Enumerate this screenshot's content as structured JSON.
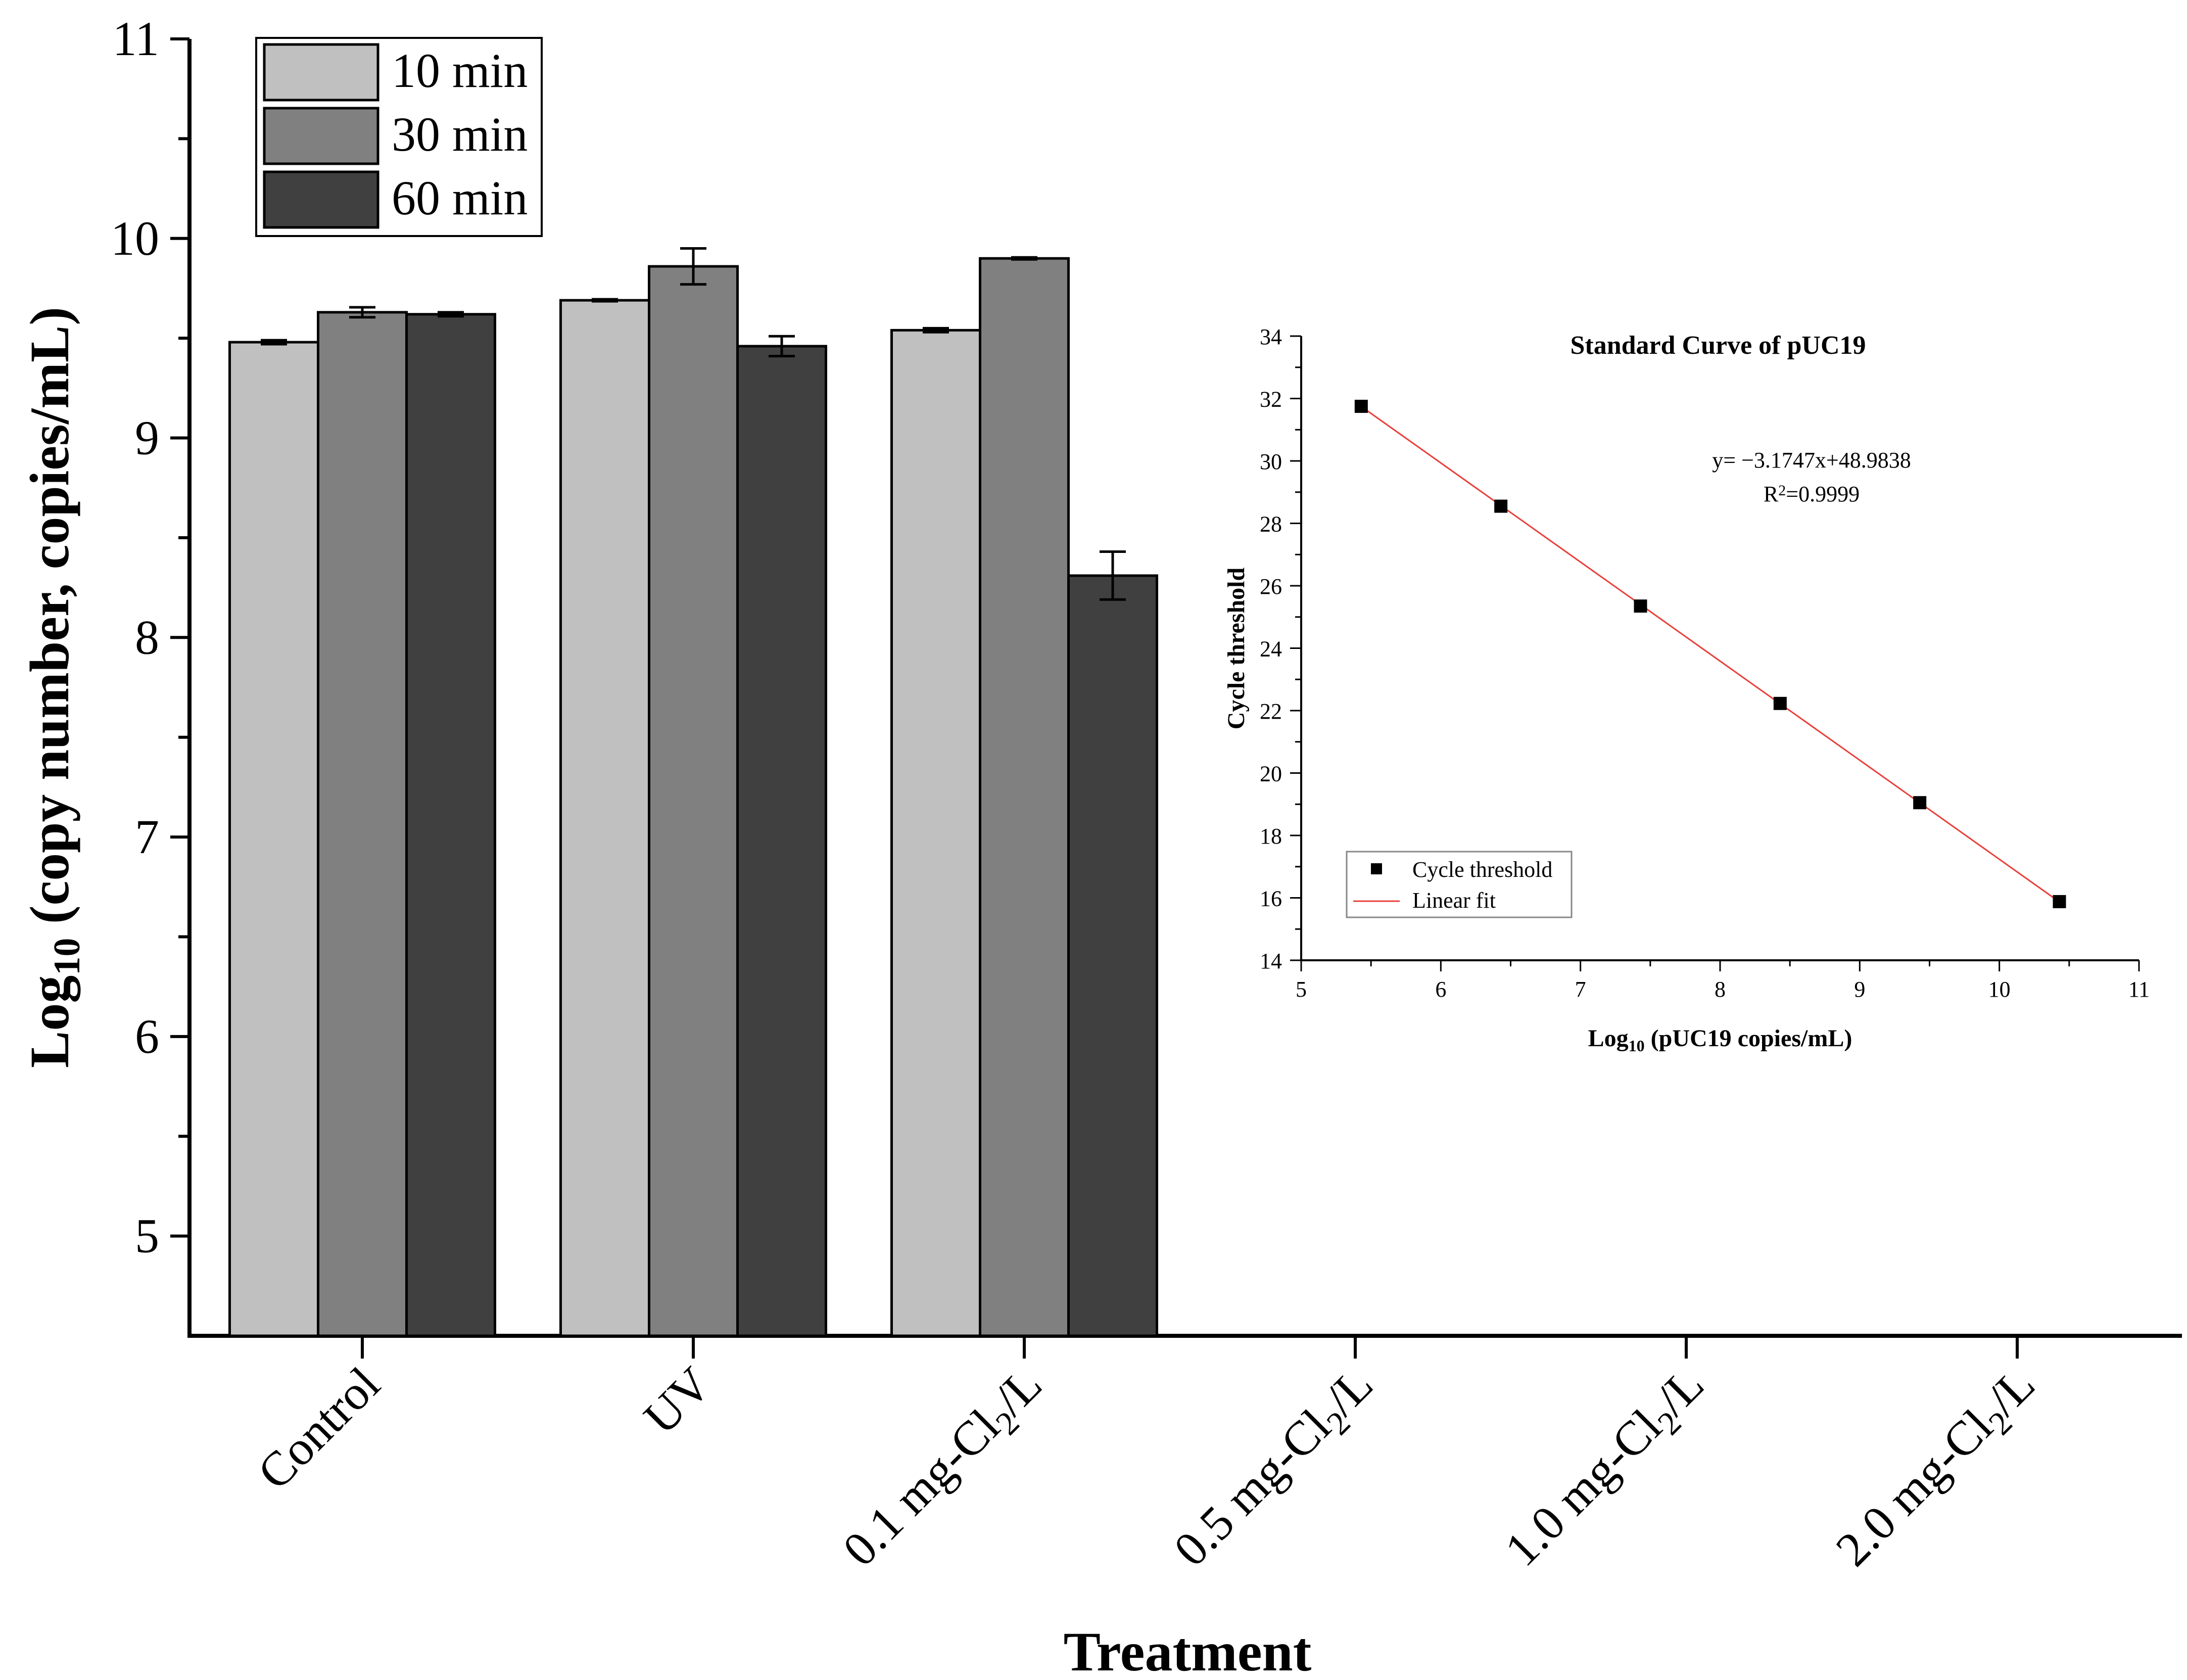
{
  "chart_data": [
    {
      "type": "bar",
      "xlabel": "Treatment",
      "ylabel_main": "Log",
      "ylabel_sub": "10",
      "ylabel_rest": " (copy number, copies/mL)",
      "ylim": [
        4.5,
        11
      ],
      "yticks": [
        5,
        6,
        7,
        8,
        9,
        10,
        11
      ],
      "categories": [
        {
          "main": "Control"
        },
        {
          "main": "UV"
        },
        {
          "main": "0.1 mg-Cl",
          "sub": "2",
          "tail": "/L"
        },
        {
          "main": "0.5 mg-Cl",
          "sub": "2",
          "tail": "/L"
        },
        {
          "main": "1.0 mg-Cl",
          "sub": "2",
          "tail": "/L"
        },
        {
          "main": "2.0 mg-Cl",
          "sub": "2",
          "tail": "/L"
        }
      ],
      "series": [
        {
          "name": "10 min",
          "color": "#c0c0c0",
          "values": [
            9.48,
            9.69,
            9.54,
            null,
            null,
            null
          ],
          "errors": [
            0.01,
            0.005,
            0.01,
            null,
            null,
            null
          ]
        },
        {
          "name": "30 min",
          "color": "#808080",
          "values": [
            9.63,
            9.86,
            9.9,
            null,
            null,
            null
          ],
          "errors": [
            0.025,
            0.09,
            0.005,
            null,
            null,
            null
          ]
        },
        {
          "name": "60 min",
          "color": "#404040",
          "values": [
            9.62,
            9.46,
            8.31,
            null,
            null,
            null
          ],
          "errors": [
            0.01,
            0.05,
            0.12,
            null,
            null,
            null
          ]
        }
      ],
      "legend_position": "top-left"
    },
    {
      "type": "scatter",
      "title": "Standard Curve of pUC19",
      "xlabel_main": "Log",
      "xlabel_sub": "10",
      "xlabel_rest": " (pUC19 copies/mL)",
      "ylabel": "Cycle threshold",
      "xlim": [
        5,
        11
      ],
      "ylim": [
        14,
        34
      ],
      "xticks": [
        5,
        6,
        7,
        8,
        9,
        10,
        11
      ],
      "yticks": [
        14,
        16,
        18,
        20,
        22,
        24,
        26,
        28,
        30,
        32,
        34
      ],
      "x": [
        5.43,
        6.43,
        7.43,
        8.43,
        9.43,
        10.43
      ],
      "y": [
        31.75,
        28.55,
        25.35,
        22.23,
        19.05,
        15.88
      ],
      "equation": "y= −3.1747x+48.9838",
      "r2_main": "R",
      "r2_sup": "2",
      "r2_rest": "=0.9999",
      "fit": {
        "slope": -3.1747,
        "intercept": 48.9838,
        "color": "#e8413c"
      },
      "legend_items": [
        "Cycle threshold",
        "Linear fit"
      ],
      "legend_position": "bottom-left"
    }
  ]
}
